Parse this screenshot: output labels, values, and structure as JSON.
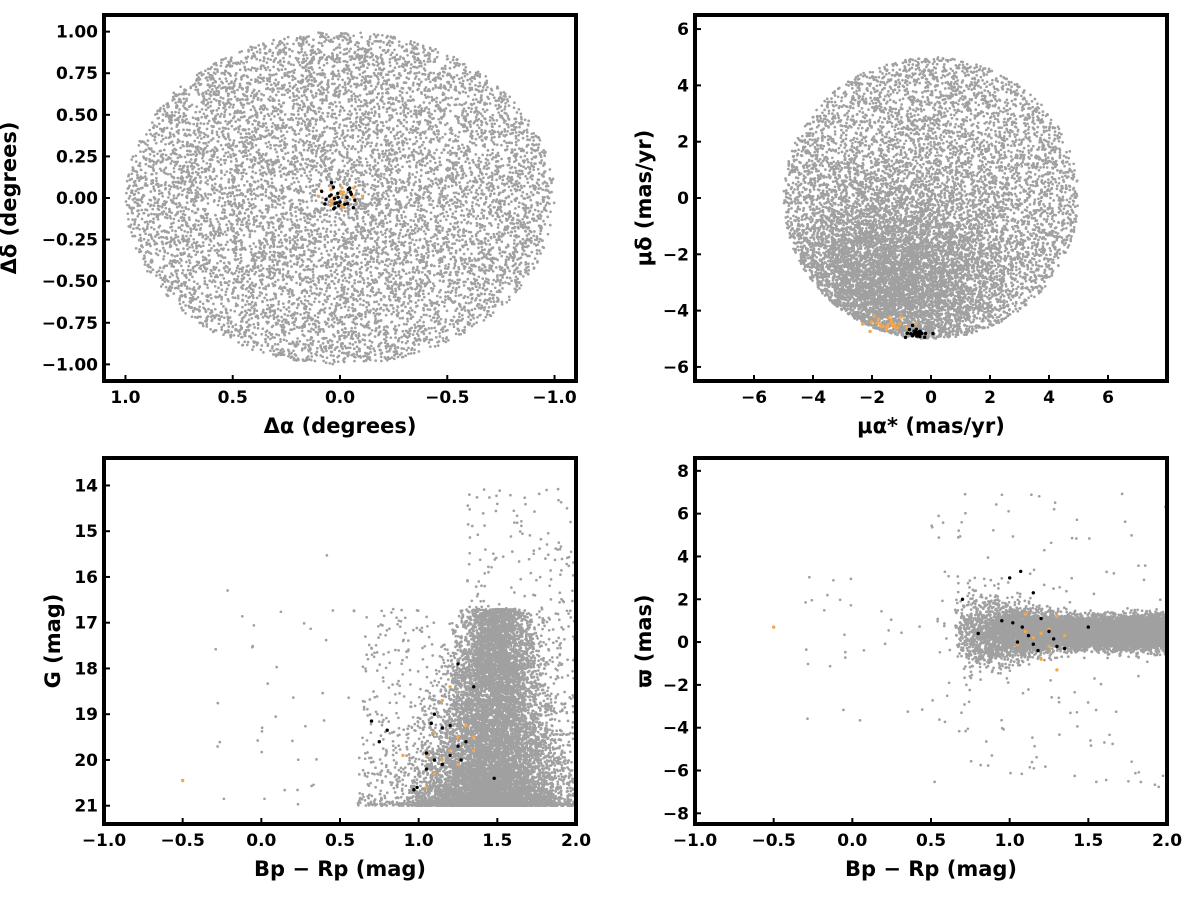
{
  "chart_data": [
    {
      "type": "scatter",
      "panel": "top-left",
      "xlabel": "Δα (degrees)",
      "ylabel": "Δδ (degrees)",
      "xlim": [
        1.1,
        -1.1
      ],
      "ylim": [
        -1.1,
        1.1
      ],
      "x_inverted": true,
      "xticks": [
        1.0,
        0.5,
        0.0,
        -0.5,
        -1.0
      ],
      "xtick_labels": [
        "1.0",
        "0.5",
        "0.0",
        "−0.5",
        "−1.0"
      ],
      "yticks": [
        1.0,
        0.75,
        0.5,
        0.25,
        0.0,
        -0.25,
        -0.5,
        -0.75,
        -1.0
      ],
      "ytick_labels": [
        "1.00",
        "0.75",
        "0.50",
        "0.25",
        "0.00",
        "−0.25",
        "−0.50",
        "−0.75",
        "−1.00"
      ],
      "grid": false,
      "series": [
        {
          "role": "field",
          "color": "#a0a0a0",
          "distribution": {
            "shape": "disk",
            "center": [
              0,
              0
            ],
            "radius": 1.0,
            "count": 9000
          }
        },
        {
          "role": "members-probable",
          "color": "#f5a54a",
          "distribution": {
            "shape": "cluster",
            "center": [
              0.0,
              0.0
            ],
            "spread": [
              0.04,
              0.04
            ],
            "count": 20
          }
        },
        {
          "role": "members-high",
          "color": "#000000",
          "distribution": {
            "shape": "cluster",
            "center": [
              0.0,
              0.0
            ],
            "spread": [
              0.04,
              0.04
            ],
            "count": 25
          }
        }
      ]
    },
    {
      "type": "scatter",
      "panel": "top-right",
      "xlabel": "μα* (mas/yr)",
      "ylabel": "μδ (mas/yr)",
      "xlim": [
        -8,
        8
      ],
      "ylim": [
        -6.5,
        6.5
      ],
      "xticks": [
        -6,
        -4,
        -2,
        0,
        2,
        4,
        6
      ],
      "xtick_labels": [
        "−6",
        "−4",
        "−2",
        "0",
        "2",
        "4",
        "6"
      ],
      "yticks": [
        6,
        4,
        2,
        0,
        -2,
        -4,
        -6
      ],
      "ytick_labels": [
        "6",
        "4",
        "2",
        "0",
        "−2",
        "−4",
        "−6"
      ],
      "grid": false,
      "series": [
        {
          "role": "field",
          "color": "#a0a0a0",
          "distribution": {
            "shape": "disk",
            "center": [
              0,
              0
            ],
            "radius": 5.0,
            "count": 11000,
            "dense_toward": [
              -1.5,
              -3.0
            ]
          }
        },
        {
          "role": "members-probable",
          "color": "#f5a54a",
          "distribution": {
            "shape": "cluster",
            "center": [
              -1.5,
              -4.5
            ],
            "spread": [
              0.35,
              0.15
            ],
            "count": 25
          }
        },
        {
          "role": "members-high",
          "color": "#000000",
          "distribution": {
            "shape": "cluster",
            "center": [
              -0.5,
              -4.8
            ],
            "spread": [
              0.25,
              0.12
            ],
            "count": 25
          }
        }
      ]
    },
    {
      "type": "scatter",
      "panel": "bottom-left",
      "xlabel": "Bp − Rp (mag)",
      "ylabel": "G (mag)",
      "xlim": [
        -1.0,
        2.0
      ],
      "ylim": [
        21.4,
        13.4
      ],
      "y_inverted": true,
      "xticks": [
        -1.0,
        -0.5,
        0.0,
        0.5,
        1.0,
        1.5,
        2.0
      ],
      "xtick_labels": [
        "−1.0",
        "−0.5",
        "0.0",
        "0.5",
        "1.0",
        "1.5",
        "2.0"
      ],
      "yticks": [
        21,
        20,
        19,
        18,
        17,
        16,
        15,
        14
      ],
      "ytick_labels": [
        "21",
        "20",
        "19",
        "18",
        "17",
        "16",
        "15",
        "14"
      ],
      "grid": false,
      "series": [
        {
          "role": "field",
          "color": "#a0a0a0",
          "distribution": {
            "shape": "cmd-wedge",
            "count": 11000
          }
        },
        {
          "role": "members-probable",
          "color": "#f5a54a",
          "points": [
            [
              -0.5,
              20.45
            ],
            [
              1.05,
              19.9
            ],
            [
              1.1,
              19.4
            ],
            [
              1.15,
              20.0
            ],
            [
              1.2,
              19.8
            ],
            [
              1.25,
              19.5
            ],
            [
              1.3,
              19.6
            ],
            [
              1.35,
              19.8
            ],
            [
              1.1,
              20.3
            ],
            [
              1.2,
              18.4
            ],
            [
              1.15,
              18.7
            ],
            [
              1.3,
              19.25
            ],
            [
              0.9,
              19.9
            ],
            [
              1.05,
              20.6
            ],
            [
              1.35,
              19.5
            ],
            [
              1.25,
              20.1
            ]
          ]
        },
        {
          "role": "members-high",
          "color": "#000000",
          "points": [
            [
              0.97,
              20.65
            ],
            [
              0.99,
              20.6
            ],
            [
              1.05,
              20.2
            ],
            [
              1.1,
              20.0
            ],
            [
              1.15,
              20.1
            ],
            [
              1.2,
              19.9
            ],
            [
              1.25,
              19.7
            ],
            [
              1.08,
              19.2
            ],
            [
              1.1,
              19.0
            ],
            [
              0.75,
              19.6
            ],
            [
              0.8,
              19.35
            ],
            [
              0.7,
              19.15
            ],
            [
              1.15,
              19.3
            ],
            [
              1.3,
              19.6
            ],
            [
              1.27,
              20.0
            ],
            [
              1.48,
              20.4
            ],
            [
              1.25,
              17.9
            ],
            [
              1.35,
              18.4
            ],
            [
              1.2,
              19.25
            ],
            [
              1.05,
              19.85
            ]
          ]
        }
      ]
    },
    {
      "type": "scatter",
      "panel": "bottom-right",
      "xlabel": "Bp − Rp (mag)",
      "ylabel": "ϖ (mas)",
      "xlim": [
        -1.0,
        2.0
      ],
      "ylim": [
        -8.5,
        8.6
      ],
      "xticks": [
        -1.0,
        -0.5,
        0.0,
        0.5,
        1.0,
        1.5,
        2.0
      ],
      "xtick_labels": [
        "−1.0",
        "−0.5",
        "0.0",
        "0.5",
        "1.0",
        "1.5",
        "2.0"
      ],
      "yticks": [
        8,
        6,
        4,
        2,
        0,
        -2,
        -4,
        -6,
        -8
      ],
      "ytick_labels": [
        "8",
        "6",
        "4",
        "2",
        "0",
        "−2",
        "−4",
        "−6",
        "−8"
      ],
      "grid": false,
      "series": [
        {
          "role": "field",
          "color": "#a0a0a0",
          "distribution": {
            "shape": "plx-band",
            "count": 11000
          }
        },
        {
          "role": "members-probable",
          "color": "#f5a54a",
          "points": [
            [
              -0.5,
              0.7
            ],
            [
              1.1,
              1.3
            ],
            [
              1.15,
              0.2
            ],
            [
              1.2,
              0.4
            ],
            [
              1.25,
              -0.2
            ],
            [
              1.3,
              1.2
            ],
            [
              1.35,
              0.3
            ],
            [
              1.05,
              -0.1
            ],
            [
              1.2,
              -0.8
            ],
            [
              1.25,
              0.6
            ],
            [
              1.1,
              0.5
            ],
            [
              1.3,
              -1.3
            ]
          ]
        },
        {
          "role": "members-high",
          "color": "#000000",
          "points": [
            [
              1.07,
              3.3
            ],
            [
              1.0,
              3.0
            ],
            [
              1.15,
              2.3
            ],
            [
              0.95,
              1.0
            ],
            [
              1.02,
              0.9
            ],
            [
              1.08,
              0.7
            ],
            [
              1.12,
              0.3
            ],
            [
              1.18,
              -0.4
            ],
            [
              1.2,
              1.1
            ],
            [
              1.25,
              0.5
            ],
            [
              1.3,
              -0.2
            ],
            [
              1.35,
              -0.3
            ],
            [
              1.5,
              0.7
            ],
            [
              0.8,
              0.4
            ],
            [
              0.7,
              2.0
            ],
            [
              1.05,
              0.0
            ],
            [
              1.28,
              0.15
            ],
            [
              1.15,
              -0.1
            ]
          ]
        }
      ]
    }
  ]
}
